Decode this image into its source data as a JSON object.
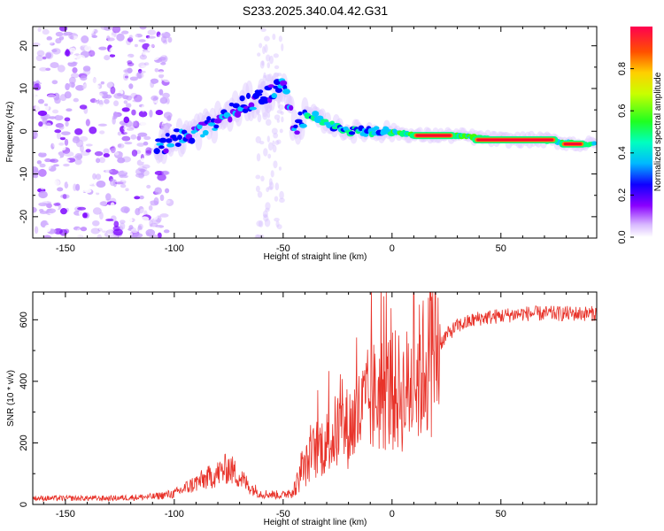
{
  "title": "S233.2025.340.04.42.G31",
  "chart_data": [
    {
      "type": "heatmap",
      "name": "spectrogram",
      "xlabel": "Height of straight line (km)",
      "ylabel": "Frequency (Hz)",
      "xlim": [
        -165,
        94
      ],
      "ylim": [
        -25,
        24.5
      ],
      "xticks": [
        -150,
        -100,
        -50,
        0,
        50
      ],
      "yticks": [
        -20,
        -10,
        0,
        10,
        20
      ],
      "colorbar": {
        "label": "Normalized spectral amplitude",
        "range": [
          0,
          1
        ],
        "ticks": [
          "0.0",
          "0.2",
          "0.4",
          "0.6",
          "0.8"
        ],
        "tick_values": [
          0,
          0.2,
          0.4,
          0.6,
          0.8
        ],
        "colors": [
          "#ffffff",
          "#c8a0ff",
          "#7a00ff",
          "#0000ff",
          "#00c8ff",
          "#00ff80",
          "#40ff00",
          "#ffff00",
          "#ff8000",
          "#ff0000"
        ]
      },
      "ridge": [
        {
          "x": -105,
          "f": -3
        },
        {
          "x": -95,
          "f": -1
        },
        {
          "x": -85,
          "f": 1
        },
        {
          "x": -75,
          "f": 4
        },
        {
          "x": -65,
          "f": 7
        },
        {
          "x": -55,
          "f": 9
        },
        {
          "x": -50,
          "f": 11
        },
        {
          "x": -45,
          "f": 1
        },
        {
          "x": -38,
          "f": 4
        },
        {
          "x": -30,
          "f": 2
        },
        {
          "x": -20,
          "f": 0
        },
        {
          "x": -10,
          "f": 0
        },
        {
          "x": 0,
          "f": 0
        },
        {
          "x": 10,
          "f": -1
        },
        {
          "x": 30,
          "f": -1
        },
        {
          "x": 50,
          "f": -2
        },
        {
          "x": 70,
          "f": -2
        },
        {
          "x": 85,
          "f": -3
        },
        {
          "x": 93,
          "f": -3
        }
      ],
      "hot_segments": [
        {
          "x0": 10,
          "x1": 28,
          "f": -1
        },
        {
          "x0": 38,
          "x1": 75,
          "f": -2
        },
        {
          "x0": 78,
          "x1": 88,
          "f": -3
        }
      ]
    },
    {
      "type": "line",
      "name": "snr",
      "xlabel": "Height of straight line (km)",
      "ylabel": "SNR (10 * v/v)",
      "xlim": [
        -165,
        94
      ],
      "ylim": [
        0,
        690
      ],
      "xticks": [
        -150,
        -100,
        -50,
        0,
        50
      ],
      "yticks": [
        0,
        200,
        400,
        600
      ],
      "color": "#e8332a",
      "envelope": [
        {
          "x": -165,
          "y": 20
        },
        {
          "x": -130,
          "y": 20
        },
        {
          "x": -110,
          "y": 25
        },
        {
          "x": -100,
          "y": 35
        },
        {
          "x": -90,
          "y": 70
        },
        {
          "x": -80,
          "y": 100
        },
        {
          "x": -75,
          "y": 120
        },
        {
          "x": -70,
          "y": 90
        },
        {
          "x": -65,
          "y": 55
        },
        {
          "x": -60,
          "y": 35
        },
        {
          "x": -50,
          "y": 30
        },
        {
          "x": -45,
          "y": 50
        },
        {
          "x": -40,
          "y": 120
        },
        {
          "x": -35,
          "y": 180
        },
        {
          "x": -30,
          "y": 200
        },
        {
          "x": -25,
          "y": 240
        },
        {
          "x": -20,
          "y": 250
        },
        {
          "x": -15,
          "y": 290
        },
        {
          "x": -10,
          "y": 340
        },
        {
          "x": -5,
          "y": 360
        },
        {
          "x": 0,
          "y": 370
        },
        {
          "x": 5,
          "y": 360
        },
        {
          "x": 10,
          "y": 400
        },
        {
          "x": 15,
          "y": 450
        },
        {
          "x": 20,
          "y": 500
        },
        {
          "x": 25,
          "y": 550
        },
        {
          "x": 30,
          "y": 580
        },
        {
          "x": 40,
          "y": 605
        },
        {
          "x": 60,
          "y": 620
        },
        {
          "x": 80,
          "y": 620
        },
        {
          "x": 94,
          "y": 620
        }
      ]
    }
  ]
}
